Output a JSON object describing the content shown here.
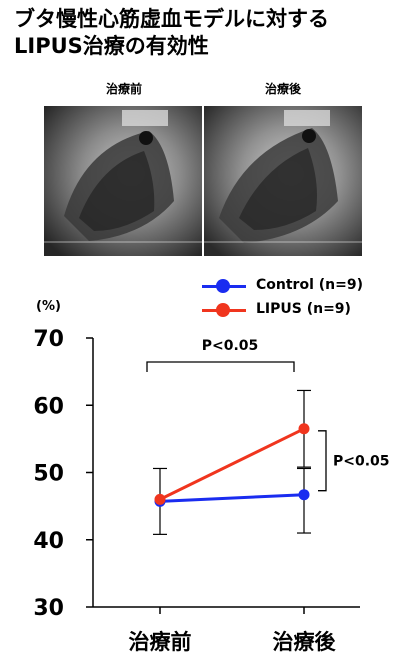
{
  "title_line1": "ブタ慢性心筋虚血モデルに対する",
  "title_line2": "LIPUS治療の有効性",
  "images": [
    {
      "label": "治療前",
      "image": "ventriculography-xray-before"
    },
    {
      "label": "治療後",
      "image": "ventriculography-xray-after"
    }
  ],
  "chart_data": {
    "type": "line",
    "unit_label": "(%)",
    "categories": [
      "治療前",
      "治療後"
    ],
    "ylim": [
      30,
      70
    ],
    "yticks": [
      "30",
      "40",
      "50",
      "60",
      "70"
    ],
    "series": [
      {
        "name": "Control (n=9)",
        "color": "#1a2cf0",
        "values": [
          45.7,
          46.7
        ],
        "err_low": [
          40.8,
          41.0
        ],
        "err_high": [
          50.6,
          50.6
        ]
      },
      {
        "name": "LIPUS (n=9)",
        "color": "#f0351e",
        "values": [
          46.0,
          56.5
        ],
        "err_low": [
          46.0,
          50.8
        ],
        "err_high": [
          46.0,
          62.2
        ]
      }
    ],
    "annotations": [
      {
        "text": "P<0.05",
        "between": "categories"
      },
      {
        "text": "P<0.05",
        "between": "series-after"
      }
    ],
    "grid": false
  }
}
